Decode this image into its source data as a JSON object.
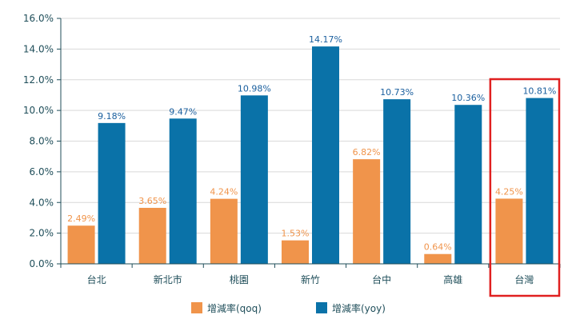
{
  "chart_data": {
    "type": "bar",
    "categories": [
      "台北",
      "新北市",
      "桃園",
      "新竹",
      "台中",
      "高雄",
      "台灣"
    ],
    "series": [
      {
        "name": "增減率(qoq)",
        "values": [
          2.49,
          3.65,
          4.24,
          1.53,
          6.82,
          0.64,
          4.25
        ],
        "labels": [
          "2.49%",
          "3.65%",
          "4.24%",
          "1.53%",
          "6.82%",
          "0.64%",
          "4.25%"
        ],
        "color": "#f0944b",
        "label_color": "#f0944b"
      },
      {
        "name": "增減率(yoy)",
        "values": [
          9.18,
          9.47,
          10.98,
          14.17,
          10.73,
          10.36,
          10.81
        ],
        "labels": [
          "9.18%",
          "9.47%",
          "10.98%",
          "14.17%",
          "10.73%",
          "10.36%",
          "10.81%"
        ],
        "color": "#0a72a8",
        "label_color": "#1a5f9e"
      }
    ],
    "ylim": [
      0,
      16
    ],
    "yticks": [
      "0.0%",
      "2.0%",
      "4.0%",
      "6.0%",
      "8.0%",
      "10.0%",
      "12.0%",
      "14.0%",
      "16.0%"
    ],
    "ytick_values": [
      0,
      2,
      4,
      6,
      8,
      10,
      12,
      14,
      16
    ],
    "grid": true,
    "legend_position": "bottom",
    "highlight_category": "台灣",
    "highlight_color": "#e02020",
    "title": "",
    "xlabel": "",
    "ylabel": ""
  }
}
